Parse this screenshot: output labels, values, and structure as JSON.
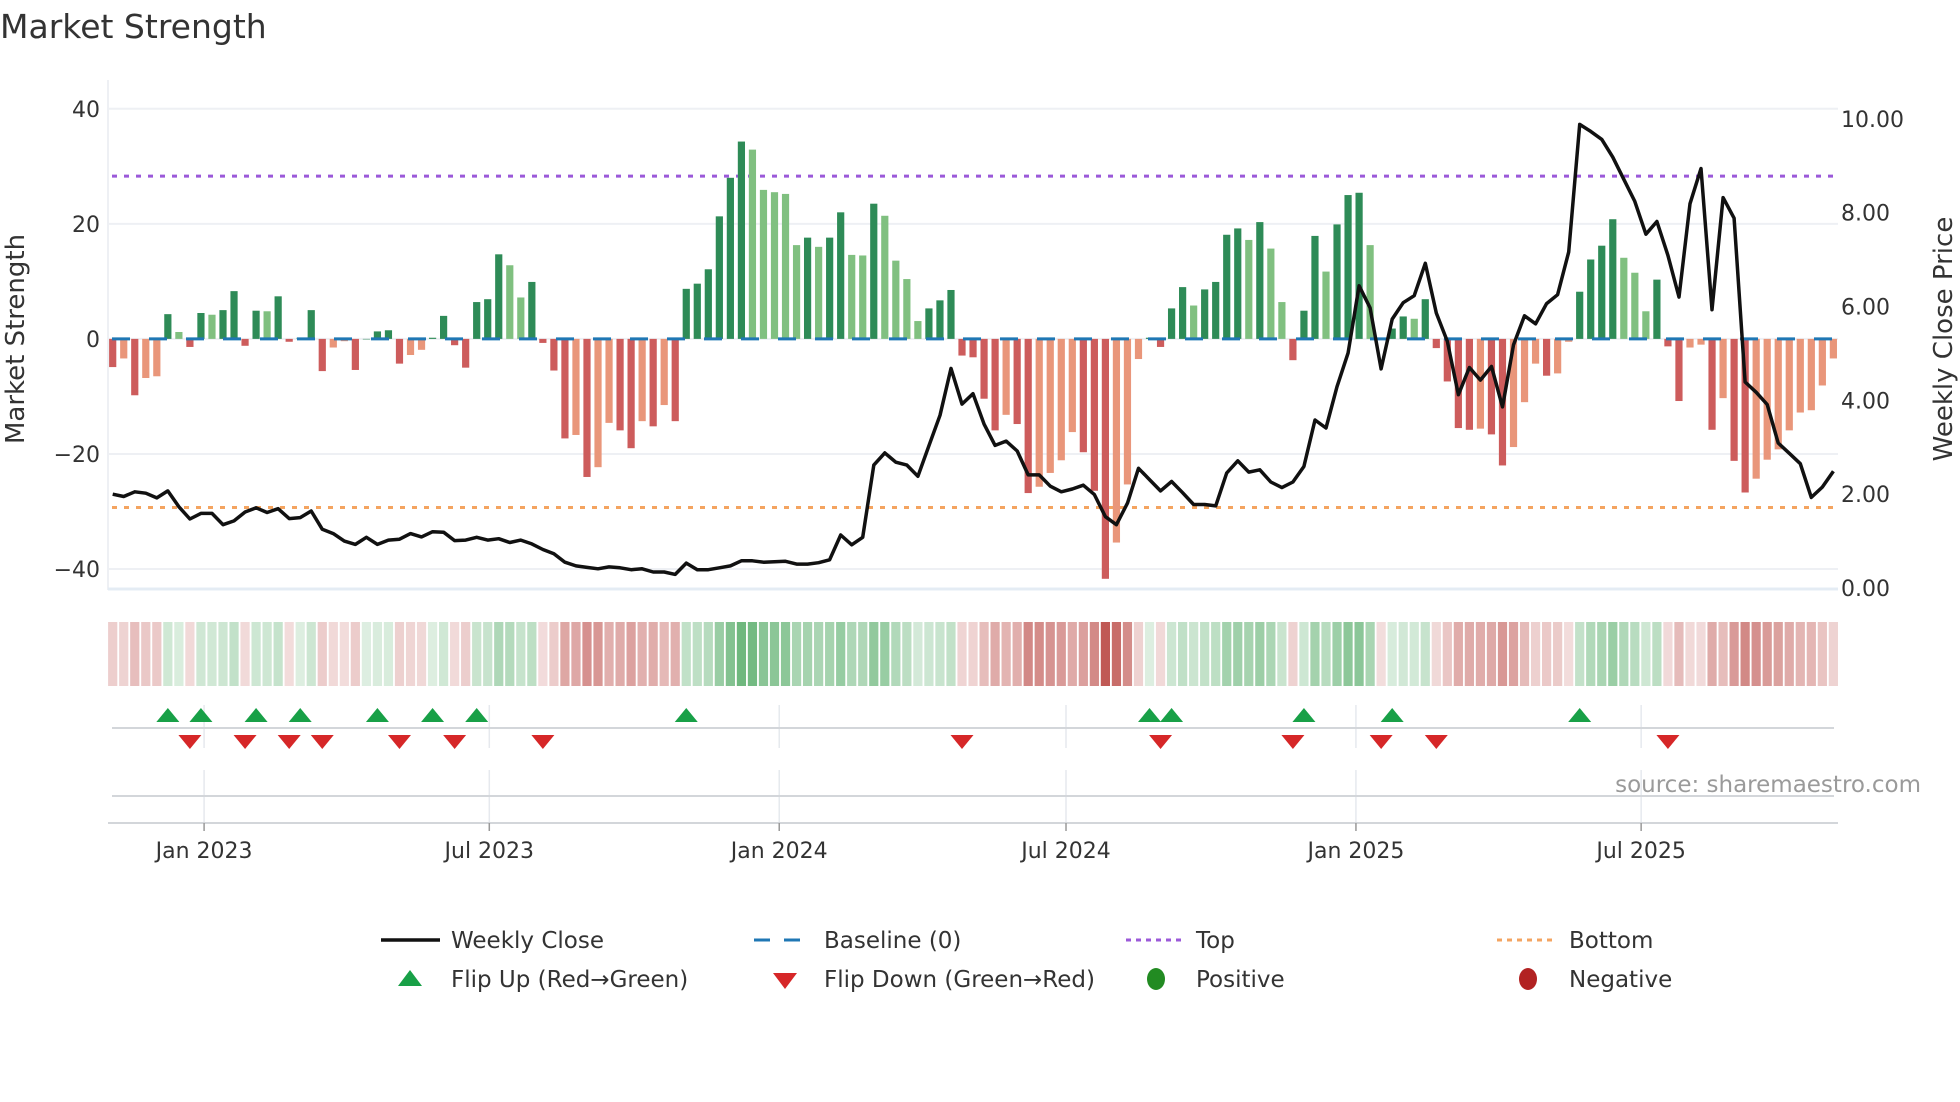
{
  "chart_data": {
    "type": "bar+line",
    "title": "Market Strength",
    "x_start": "2022-11-04",
    "x_step_days": 7,
    "strength": [
      -4.9,
      -3.4,
      -9.8,
      -6.8,
      -6.5,
      4.3,
      1.2,
      -1.4,
      4.5,
      4.2,
      5.0,
      8.3,
      -1.2,
      4.9,
      4.8,
      7.4,
      -0.5,
      0.2,
      5.0,
      -5.6,
      -1.5,
      -0.4,
      -5.4,
      0,
      1.3,
      1.5,
      -4.3,
      -2.8,
      -1.9,
      0.2,
      4.0,
      -1.1,
      -5.0,
      6.4,
      6.9,
      14.7,
      12.8,
      7.2,
      9.9,
      -0.7,
      -5.5,
      -17.3,
      -16.7,
      -24.0,
      -22.3,
      -14.6,
      -15.9,
      -19.0,
      -14.3,
      -15.2,
      -11.5,
      -14.3,
      8.7,
      9.6,
      12.1,
      21.3,
      28.0,
      34.3,
      32.9,
      25.9,
      25.5,
      25.2,
      16.3,
      17.6,
      16.0,
      17.6,
      22.0,
      14.6,
      14.5,
      23.5,
      21.4,
      13.6,
      10.4,
      3.1,
      5.3,
      6.7,
      8.5,
      -2.9,
      -3.2,
      -10.4,
      -15.9,
      -13.2,
      -14.8,
      -26.8,
      -25.7,
      -23.3,
      -21.1,
      -16.2,
      -19.7,
      -26.4,
      -41.7,
      -35.4,
      -25.3,
      -3.5,
      0.2,
      -1.4,
      5.3,
      9.0,
      5.8,
      8.6,
      9.9,
      18.1,
      19.2,
      17.2,
      20.3,
      15.7,
      6.4,
      -3.7,
      4.9,
      17.9,
      11.7,
      19.9,
      25.0,
      25.4,
      16.3,
      -0.2,
      1.8,
      3.9,
      3.5,
      6.9,
      -1.6,
      -7.4,
      -15.5,
      -15.8,
      -15.6,
      -16.6,
      -22.0,
      -18.8,
      -11.0,
      -4.3,
      -6.4,
      -6.0,
      -0.5,
      8.2,
      13.8,
      16.2,
      20.8,
      14.1,
      11.5,
      4.8,
      10.3,
      -1.3,
      -10.8,
      -1.5,
      -1.0,
      -15.8,
      -10.3,
      -21.2,
      -26.7,
      -24.3,
      -21.0,
      -19.2,
      -15.9,
      -12.8,
      -12.4,
      -8.1,
      -3.4
    ],
    "weekly_close": [
      2.0,
      1.95,
      2.05,
      2.02,
      1.92,
      2.07,
      1.73,
      1.47,
      1.59,
      1.59,
      1.35,
      1.43,
      1.62,
      1.71,
      1.61,
      1.69,
      1.48,
      1.5,
      1.64,
      1.25,
      1.16,
      1.0,
      0.93,
      1.08,
      0.93,
      1.02,
      1.04,
      1.16,
      1.09,
      1.2,
      1.19,
      1.01,
      1.02,
      1.08,
      1.02,
      1.05,
      0.97,
      1.02,
      0.94,
      0.82,
      0.73,
      0.55,
      0.47,
      0.44,
      0.41,
      0.45,
      0.43,
      0.39,
      0.41,
      0.34,
      0.34,
      0.29,
      0.53,
      0.39,
      0.39,
      0.43,
      0.47,
      0.58,
      0.58,
      0.55,
      0.56,
      0.57,
      0.51,
      0.51,
      0.54,
      0.6,
      1.13,
      0.92,
      1.08,
      2.62,
      2.88,
      2.68,
      2.62,
      2.38,
      3.03,
      3.68,
      4.68,
      3.92,
      4.14,
      3.49,
      3.04,
      3.13,
      2.92,
      2.41,
      2.41,
      2.17,
      2.05,
      2.11,
      2.19,
      1.99,
      1.52,
      1.35,
      1.81,
      2.55,
      2.31,
      2.07,
      2.27,
      2.03,
      1.78,
      1.78,
      1.75,
      2.45,
      2.71,
      2.47,
      2.52,
      2.26,
      2.14,
      2.26,
      2.59,
      3.58,
      3.41,
      4.29,
      5.01,
      6.44,
      5.97,
      4.67,
      5.73,
      6.08,
      6.23,
      6.92,
      5.86,
      5.26,
      4.12,
      4.7,
      4.43,
      4.72,
      3.86,
      5.18,
      5.8,
      5.63,
      6.06,
      6.25,
      7.16,
      9.88,
      9.73,
      9.56,
      9.18,
      8.71,
      8.24,
      7.54,
      7.81,
      7.09,
      6.2,
      8.19,
      8.94,
      5.93,
      8.32,
      7.88,
      4.39,
      4.17,
      3.91,
      3.09,
      2.87,
      2.65,
      1.93,
      2.15,
      2.49
    ],
    "y_left": {
      "label": "Market Strength",
      "range": [
        -43.3,
        45
      ],
      "ticks": [
        40,
        20,
        0,
        -20,
        -40
      ],
      "tick_labels": [
        "40",
        "20",
        "0",
        "−20",
        "−40"
      ]
    },
    "y_right": {
      "label": "Weekly Close Price",
      "range": [
        0,
        10.4
      ],
      "ticks": [
        10,
        8,
        6,
        4,
        2,
        0
      ],
      "tick_labels": [
        "10.00",
        "8.00",
        "6.00",
        "4.00",
        "2.00",
        "0.00"
      ]
    },
    "baseline": 0,
    "top_level": 28.3,
    "bottom_level": -29.3,
    "x_ticks": [
      {
        "date": "2023-01-01",
        "label": "Jan 2023"
      },
      {
        "date": "2023-07-01",
        "label": "Jul 2023"
      },
      {
        "date": "2024-01-01",
        "label": "Jan 2024"
      },
      {
        "date": "2024-07-01",
        "label": "Jul 2024"
      },
      {
        "date": "2025-01-01",
        "label": "Jan 2025"
      },
      {
        "date": "2025-07-01",
        "label": "Jul 2025"
      }
    ],
    "flip_up_weeks": [
      6,
      9,
      14,
      18,
      25,
      30,
      34,
      53,
      95,
      97,
      109,
      117,
      134
    ],
    "flip_down_weeks": [
      8,
      13,
      17,
      20,
      27,
      32,
      40,
      78,
      96,
      108,
      116,
      121,
      142
    ],
    "grid": true,
    "legend_position": "bottom",
    "legend": [
      {
        "key": "weekly_close",
        "label": "Weekly Close"
      },
      {
        "key": "baseline",
        "label": "Baseline (0)"
      },
      {
        "key": "top",
        "label": "Top"
      },
      {
        "key": "bottom",
        "label": "Bottom"
      },
      {
        "key": "flip_up",
        "label": "Flip Up (Red→Green)"
      },
      {
        "key": "flip_down",
        "label": "Flip Down (Green→Red)"
      },
      {
        "key": "positive",
        "label": "Positive"
      },
      {
        "key": "negative",
        "label": "Negative"
      }
    ],
    "source": "source: sharemaestro.com"
  },
  "colors": {
    "pos_strong": "#2e8b57",
    "pos_weak": "#80c080",
    "neg_strong": "#cd5c5c",
    "neg_weak": "#e9967a",
    "baseline": "#1f77b4",
    "top": "#9b59d9",
    "bottom": "#f4a460",
    "line": "#111111",
    "flip_up": "#18a047",
    "flip_down": "#d62728",
    "positive": "#228b22",
    "negative": "#b22222"
  }
}
